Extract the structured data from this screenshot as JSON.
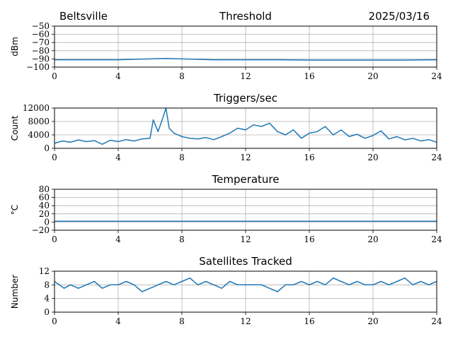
{
  "header": {
    "location": "Beltsville",
    "date": "2025/03/16"
  },
  "colors": {
    "series": "#1f77b4",
    "grid": "#b0b0b0"
  },
  "chart_data": [
    {
      "type": "line",
      "title": "Threshold",
      "ylabel": "dBm",
      "xlabel": "",
      "xlim": [
        0,
        24
      ],
      "ylim": [
        -100,
        -50
      ],
      "xticks": [
        "0",
        "4",
        "8",
        "12",
        "16",
        "20",
        "24"
      ],
      "yticks": [
        "−100",
        "−90",
        "−80",
        "−70",
        "−60",
        "−50"
      ],
      "grid": true,
      "series": [
        {
          "x": [
            0,
            2,
            4,
            5,
            6,
            7,
            8,
            9,
            10,
            12,
            14,
            16,
            18,
            20,
            22,
            24
          ],
          "values": [
            -91,
            -91,
            -91,
            -90.5,
            -90,
            -89.5,
            -90,
            -90.5,
            -91,
            -91,
            -91,
            -91.5,
            -91.5,
            -91.5,
            -91.5,
            -91
          ]
        }
      ]
    },
    {
      "type": "line",
      "title": "Triggers/sec",
      "ylabel": "Count",
      "xlabel": "",
      "xlim": [
        0,
        24
      ],
      "ylim": [
        0,
        12000
      ],
      "xticks": [
        "0",
        "4",
        "8",
        "12",
        "16",
        "20",
        "24"
      ],
      "yticks": [
        "0",
        "4000",
        "8000",
        "12000"
      ],
      "grid": true,
      "series": [
        {
          "x": [
            0,
            0.5,
            1,
            1.5,
            2,
            2.5,
            3,
            3.5,
            4,
            4.5,
            5,
            5.5,
            6,
            6.2,
            6.5,
            6.8,
            7,
            7.2,
            7.5,
            8,
            8.5,
            9,
            9.5,
            10,
            10.5,
            11,
            11.5,
            12,
            12.5,
            13,
            13.5,
            14,
            14.5,
            15,
            15.5,
            16,
            16.5,
            17,
            17.5,
            18,
            18.5,
            19,
            19.5,
            20,
            20.5,
            21,
            21.5,
            22,
            22.5,
            23,
            23.5,
            24
          ],
          "values": [
            1500,
            2200,
            1800,
            2500,
            2000,
            2300,
            1200,
            2400,
            2000,
            2600,
            2200,
            2800,
            3000,
            8500,
            5000,
            9000,
            12000,
            6000,
            4500,
            3500,
            3000,
            2800,
            3200,
            2600,
            3500,
            4500,
            6000,
            5500,
            7000,
            6500,
            7500,
            5000,
            4000,
            5500,
            3000,
            4500,
            5000,
            6500,
            4000,
            5500,
            3500,
            4200,
            3000,
            3800,
            5200,
            2800,
            3500,
            2500,
            3000,
            2200,
            2600,
            1800
          ]
        }
      ]
    },
    {
      "type": "line",
      "title": "Temperature",
      "ylabel": "°C",
      "xlabel": "",
      "xlim": [
        0,
        24
      ],
      "ylim": [
        -20,
        80
      ],
      "xticks": [
        "0",
        "4",
        "8",
        "12",
        "16",
        "20",
        "24"
      ],
      "yticks": [
        "−20",
        "0",
        "20",
        "40",
        "60",
        "80"
      ],
      "grid": true,
      "series": [
        {
          "x": [
            0,
            24
          ],
          "values": [
            2,
            2
          ]
        }
      ]
    },
    {
      "type": "line",
      "title": "Satellites Tracked",
      "ylabel": "Number",
      "xlabel": "",
      "xlim": [
        0,
        24
      ],
      "ylim": [
        0,
        12
      ],
      "xticks": [
        "0",
        "4",
        "8",
        "12",
        "16",
        "20",
        "24"
      ],
      "yticks": [
        "0",
        "4",
        "8",
        "12"
      ],
      "grid": true,
      "series": [
        {
          "x": [
            0,
            0.3,
            0.6,
            1,
            1.5,
            2,
            2.5,
            3,
            3.5,
            4,
            4.5,
            5,
            5.5,
            6,
            6.5,
            7,
            7.5,
            8,
            8.5,
            9,
            9.5,
            10,
            10.5,
            11,
            11.5,
            12,
            12.5,
            13,
            13.5,
            14,
            14.5,
            15,
            15.5,
            16,
            16.5,
            17,
            17.5,
            18,
            18.5,
            19,
            19.5,
            20,
            20.5,
            21,
            21.5,
            22,
            22.5,
            23,
            23.5,
            24
          ],
          "values": [
            9,
            8,
            7,
            8,
            7,
            8,
            9,
            7,
            8,
            8,
            9,
            8,
            6,
            7,
            8,
            9,
            8,
            9,
            10,
            8,
            9,
            8,
            7,
            9,
            8,
            8,
            8,
            8,
            7,
            6,
            8,
            8,
            9,
            8,
            9,
            8,
            10,
            9,
            8,
            9,
            8,
            8,
            9,
            8,
            9,
            10,
            8,
            9,
            8,
            9
          ]
        }
      ]
    }
  ]
}
